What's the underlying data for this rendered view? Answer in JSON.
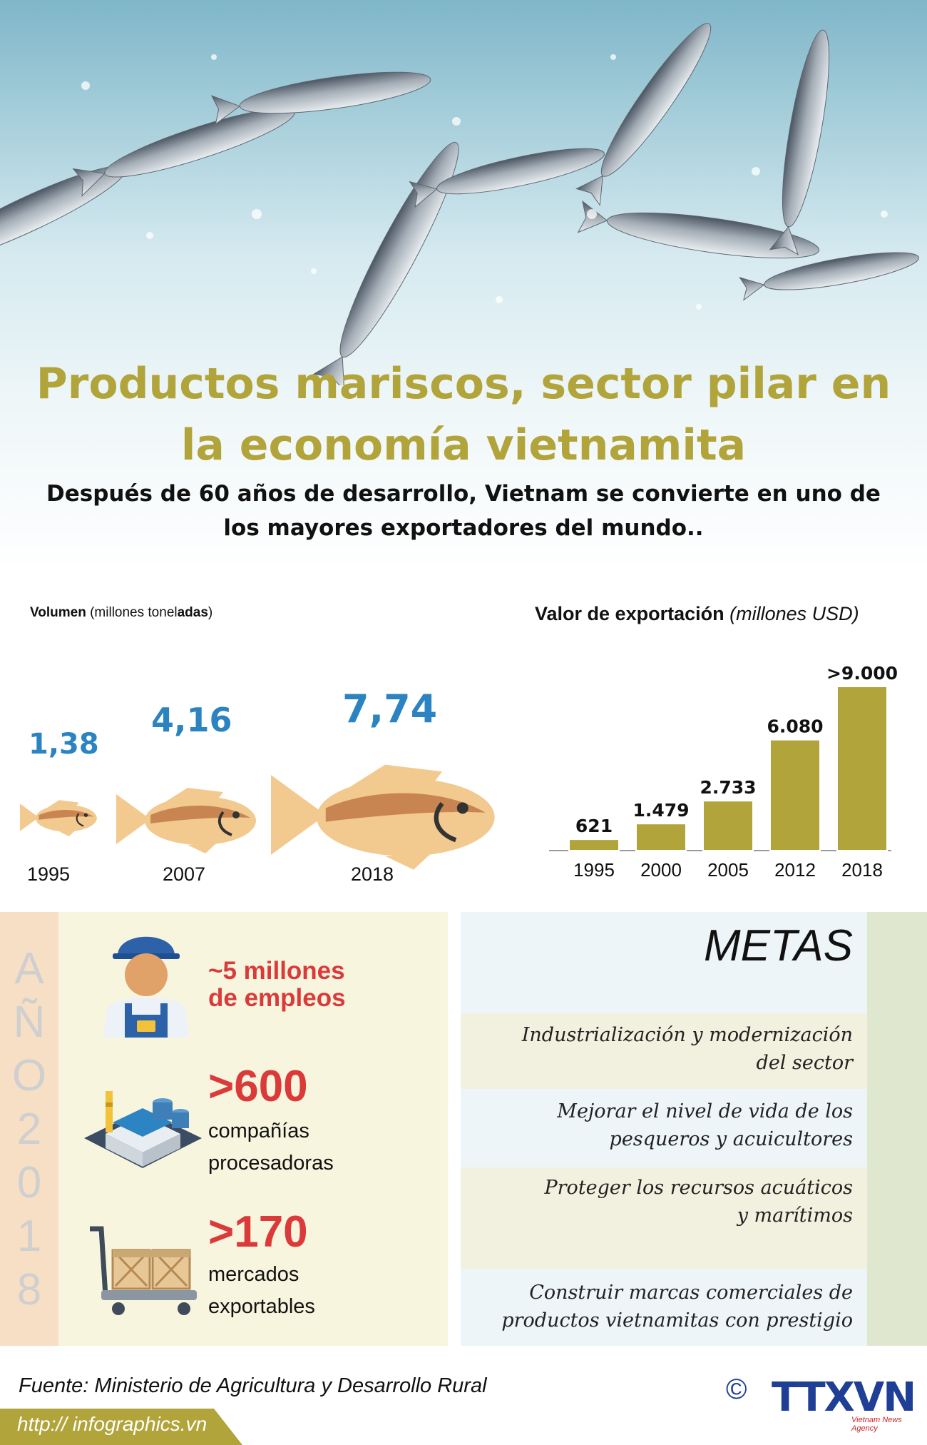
{
  "title": "Productos mariscos, sector pilar en la economía vietnamita",
  "subtitle": "Después de 60 años de desarrollo, Vietnam se convierte en uno de los mayores exportadores del mundo..",
  "volume": {
    "heading_bold": "Volumen",
    "heading_rest": " (millones tonel",
    "heading_bold2": "adas",
    "heading_end": ")",
    "items": [
      {
        "year": "1995",
        "value": "1,38"
      },
      {
        "year": "2007",
        "value": "4,16"
      },
      {
        "year": "2018",
        "value": "7,74"
      }
    ]
  },
  "export": {
    "heading": "Valor de exportación",
    "heading_unit": "(millones USD)"
  },
  "chart_data": [
    {
      "type": "bar",
      "title": "Valor de exportación (millones USD)",
      "categories": [
        "1995",
        "2000",
        "2005",
        "2012",
        "2018"
      ],
      "values": [
        621,
        1479,
        2733,
        6080,
        9000
      ],
      "labels": [
        "621",
        "1.479",
        "2.733",
        "6.080",
        ">9.000"
      ],
      "color": "#b1a43b",
      "ylim": [
        0,
        9000
      ],
      "grid": false
    },
    {
      "type": "pictogram",
      "title": "Volumen (millones toneladas)",
      "categories": [
        "1995",
        "2007",
        "2018"
      ],
      "values": [
        1.38,
        4.16,
        7.74
      ],
      "labels": [
        "1,38",
        "4,16",
        "7,74"
      ],
      "color": "#2b83c2"
    }
  ],
  "year_panel": {
    "letters": [
      "A",
      "Ñ",
      "O",
      "2",
      "0",
      "1",
      "8"
    ],
    "employment": {
      "big": "~5 millones",
      "big2": "de empleos"
    },
    "companies": {
      "big": ">600",
      "line1": "compañías",
      "line2": "procesadoras"
    },
    "markets": {
      "big": ">170",
      "line1": "mercados",
      "line2": "exportables"
    }
  },
  "goals": {
    "title": "METAS",
    "items": [
      {
        "line1": "Industrialización y modernización",
        "line2": "del sector"
      },
      {
        "line1": "Mejorar el nivel de vida de los",
        "line2": "pesqueros y acuicultores"
      },
      {
        "line1": "Proteger los recursos acuáticos",
        "line2": "y  marítimos"
      },
      {
        "line1": "Construir marcas comerciales de",
        "line2": "productos vietnamitas con prestigio"
      }
    ],
    "band_colors": [
      "#edf5f8",
      "#f2f1df",
      "#edf5f8",
      "#f2f1df",
      "#edf5f8"
    ]
  },
  "footer": {
    "source": "Fuente: Ministerio de Agricultura y Desarrollo Rural",
    "url": "http:// infographics.vn",
    "copyright": "©",
    "logo": "TTXVN",
    "logo_sub": "Vietnam News Agency"
  },
  "colors": {
    "accent_gold": "#b1a43b",
    "accent_blue": "#2b83c2",
    "accent_red": "#da3a3a",
    "fish_body": "#f2c98e",
    "fish_stripe": "#c88552"
  },
  "icons": [
    "fish-icon",
    "worker-icon",
    "factory-icon",
    "cart-icon",
    "copyright-icon",
    "fish-splash-image"
  ]
}
